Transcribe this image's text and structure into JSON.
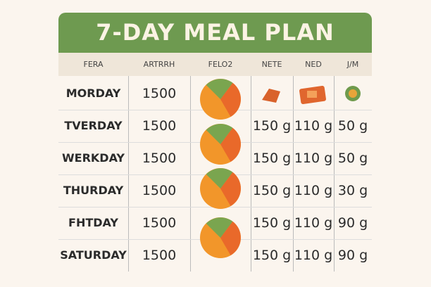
{
  "header": {
    "title": "7-DAY MEAL PLAN"
  },
  "table": {
    "columns": [
      "FERA",
      "ARTRRH",
      "FELO2",
      "NETE",
      "NED",
      "J/M"
    ],
    "rows": [
      [
        "MORDAY",
        "1500",
        null,
        null,
        null,
        null
      ],
      [
        "TVERDAY",
        "1500",
        null,
        "150 g",
        "110 g",
        "50 g"
      ],
      [
        "WERKDAY",
        "1500",
        null,
        "150 g",
        "110 g",
        "50 g"
      ],
      [
        "THURDAY",
        "1500",
        null,
        "150 g",
        "110 g",
        "30 g"
      ],
      [
        "FHTDAY",
        "1500",
        null,
        "150 g",
        "110 g",
        "90 g"
      ],
      [
        "SATURDAY",
        "1500",
        null,
        "150 g",
        "110 g",
        "90 g"
      ]
    ]
  }
}
